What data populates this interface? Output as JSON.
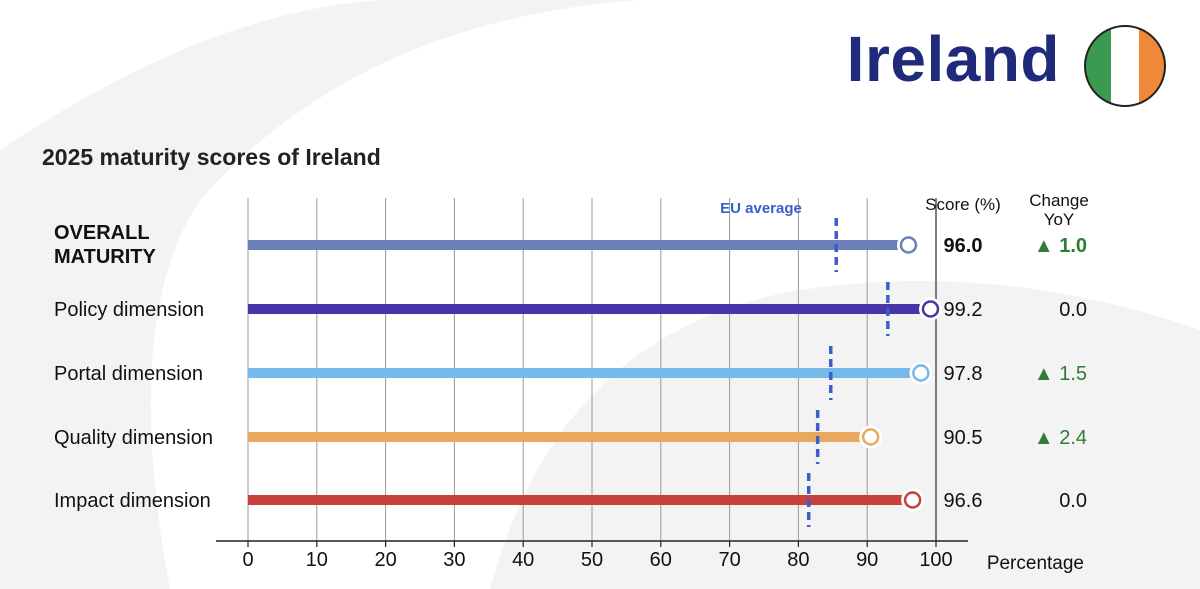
{
  "header": {
    "country": "Ireland",
    "flag_colors": [
      "#3a9a4f",
      "#ffffff",
      "#f0883a"
    ]
  },
  "chart_data": {
    "type": "bar",
    "title": "2025 maturity scores of Ireland",
    "xlabel": "Percentage",
    "xlim": [
      0,
      100
    ],
    "ticks": [
      0,
      10,
      20,
      30,
      40,
      50,
      60,
      70,
      80,
      90,
      100
    ],
    "grid": true,
    "score_header": "Score (%)",
    "change_header": [
      "Change",
      "YoY"
    ],
    "eu_average_label": "EU average",
    "rows": [
      {
        "label_lines": [
          "OVERALL",
          "MATURITY"
        ],
        "value": 96.0,
        "score": "96.0",
        "change": "▲ 1.0",
        "up": true,
        "bold": true,
        "eu_average": 85.5,
        "color": "#6b7fb8"
      },
      {
        "label_lines": [
          "Policy dimension"
        ],
        "value": 99.2,
        "score": "99.2",
        "change": "0.0",
        "up": false,
        "bold": false,
        "eu_average": 93.0,
        "color": "#4a35a8"
      },
      {
        "label_lines": [
          "Portal dimension"
        ],
        "value": 97.8,
        "score": "97.8",
        "change": "▲ 1.5",
        "up": true,
        "bold": false,
        "eu_average": 84.7,
        "color": "#74b9ea"
      },
      {
        "label_lines": [
          "Quality dimension"
        ],
        "value": 90.5,
        "score": "90.5",
        "change": "▲ 2.4",
        "up": true,
        "bold": false,
        "eu_average": 82.8,
        "color": "#e8a95c"
      },
      {
        "label_lines": [
          "Impact dimension"
        ],
        "value": 96.6,
        "score": "96.6",
        "change": "0.0",
        "up": false,
        "bold": false,
        "eu_average": 81.5,
        "color": "#c8403c"
      }
    ]
  }
}
